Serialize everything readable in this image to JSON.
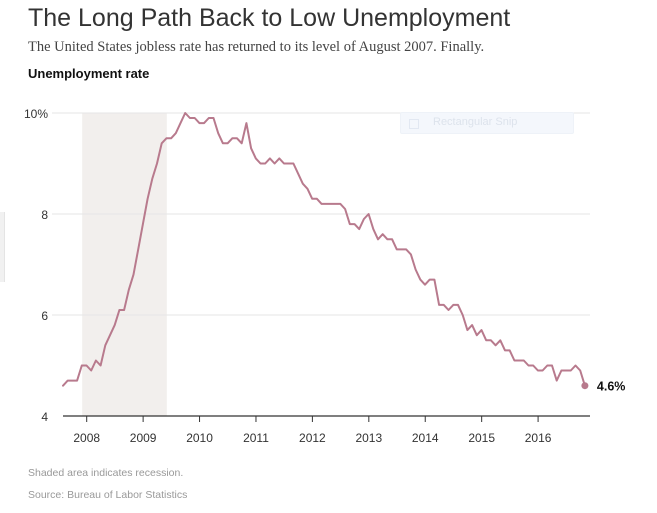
{
  "header": {
    "title": "The Long Path Back to Low Unemployment",
    "subtitle": "The United States jobless rate has returned to its level of August 2007. Finally.",
    "y_label": "Unemployment rate"
  },
  "footer": {
    "recession_note": "Shaded area indicates recession.",
    "source": "Source: Bureau of Labor Statistics"
  },
  "overlay": {
    "label": "Rectangular Snip"
  },
  "colors": {
    "line": "#b87a8d",
    "recession": "#f2efed",
    "grid": "#e6e6e6",
    "axis": "#333333"
  },
  "chart_data": {
    "type": "line",
    "title": "The Long Path Back to Low Unemployment",
    "subtitle": "The United States jobless rate has returned to its level of August 2007. Finally.",
    "xlabel": "",
    "ylabel": "Unemployment rate",
    "ylim": [
      4,
      10
    ],
    "xlim": [
      2007.58,
      2016.92
    ],
    "yticks": [
      {
        "value": 4,
        "label": "4"
      },
      {
        "value": 6,
        "label": "6"
      },
      {
        "value": 8,
        "label": "8"
      },
      {
        "value": 10,
        "label": "10%"
      }
    ],
    "xticks": [
      {
        "value": 2008,
        "label": "2008"
      },
      {
        "value": 2009,
        "label": "2009"
      },
      {
        "value": 2010,
        "label": "2010"
      },
      {
        "value": 2011,
        "label": "2011"
      },
      {
        "value": 2012,
        "label": "2012"
      },
      {
        "value": 2013,
        "label": "2013"
      },
      {
        "value": 2014,
        "label": "2014"
      },
      {
        "value": 2015,
        "label": "2015"
      },
      {
        "value": 2016,
        "label": "2016"
      }
    ],
    "grid": true,
    "recession": {
      "start": 2007.92,
      "end": 2009.42
    },
    "end_label": "4.6%",
    "series": [
      {
        "name": "Unemployment rate",
        "start": 2007.58,
        "step": 0.08333,
        "values": [
          4.6,
          4.7,
          4.7,
          4.7,
          5.0,
          5.0,
          4.9,
          5.1,
          5.0,
          5.4,
          5.6,
          5.8,
          6.1,
          6.1,
          6.5,
          6.8,
          7.3,
          7.8,
          8.3,
          8.7,
          9.0,
          9.4,
          9.5,
          9.5,
          9.6,
          9.8,
          10.0,
          9.9,
          9.9,
          9.8,
          9.8,
          9.9,
          9.9,
          9.6,
          9.4,
          9.4,
          9.5,
          9.5,
          9.4,
          9.8,
          9.3,
          9.1,
          9.0,
          9.0,
          9.1,
          9.0,
          9.1,
          9.0,
          9.0,
          9.0,
          8.8,
          8.6,
          8.5,
          8.3,
          8.3,
          8.2,
          8.2,
          8.2,
          8.2,
          8.2,
          8.1,
          7.8,
          7.8,
          7.7,
          7.9,
          8.0,
          7.7,
          7.5,
          7.6,
          7.5,
          7.5,
          7.3,
          7.3,
          7.3,
          7.2,
          6.9,
          6.7,
          6.6,
          6.7,
          6.7,
          6.2,
          6.2,
          6.1,
          6.2,
          6.2,
          6.0,
          5.7,
          5.8,
          5.6,
          5.7,
          5.5,
          5.5,
          5.4,
          5.5,
          5.3,
          5.3,
          5.1,
          5.1,
          5.1,
          5.0,
          5.0,
          4.9,
          4.9,
          5.0,
          5.0,
          4.7,
          4.9,
          4.9,
          4.9,
          5.0,
          4.9,
          4.6
        ]
      }
    ]
  }
}
